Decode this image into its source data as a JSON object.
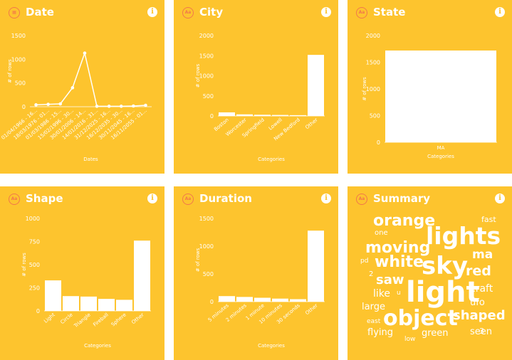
{
  "colors": {
    "panel": "#FDC42E",
    "mark": "#FFFFFF",
    "icon_accent": "#F2784B"
  },
  "cards": [
    {
      "title": "Date",
      "type_icon": "calendar-icon",
      "info": "i"
    },
    {
      "title": "City",
      "type_icon": "Aa",
      "info": "i"
    },
    {
      "title": "State",
      "type_icon": "Aa",
      "info": "i"
    },
    {
      "title": "Shape",
      "type_icon": "Aa",
      "info": "i"
    },
    {
      "title": "Duration",
      "type_icon": "Aa",
      "info": "i"
    },
    {
      "title": "Summary",
      "type_icon": "Aa",
      "info": "i"
    }
  ],
  "chart_data": [
    {
      "type": "line",
      "title": "Date",
      "xlabel": "Dates",
      "ylabel": "# of rows",
      "ylim": [
        0,
        1500
      ],
      "yticks": [
        0,
        500,
        1000,
        1500
      ],
      "categories": [
        "01/04/1966 - 16...",
        "18/03/1976 - 01...",
        "01/03/1986 - 15...",
        "15/02/1996 - 30...",
        "30/01/2006 - 14...",
        "14/01/2016 - 31...",
        "31/12/2025 - 16...",
        "16/12/2035 - 30...",
        "30/11/2045 - 16...",
        "16/11/2055 - 01..."
      ],
      "values": [
        40,
        50,
        60,
        400,
        1130,
        10,
        10,
        10,
        15,
        30
      ]
    },
    {
      "type": "bar",
      "title": "City",
      "xlabel": "Categories",
      "ylabel": "# of rows",
      "ylim": [
        0,
        2000
      ],
      "yticks": [
        0,
        500,
        1000,
        1500,
        2000
      ],
      "categories": [
        "Boston",
        "Worcester",
        "Springfield",
        "Lowell",
        "New Bedford",
        "Other"
      ],
      "values": [
        90,
        40,
        30,
        25,
        20,
        1520
      ]
    },
    {
      "type": "bar",
      "title": "State",
      "xlabel": "Categories",
      "ylabel": "# of rows",
      "ylim": [
        0,
        2000
      ],
      "yticks": [
        0,
        500,
        1000,
        1500,
        2000
      ],
      "categories": [
        "MA"
      ],
      "values": [
        1720
      ]
    },
    {
      "type": "bar",
      "title": "Shape",
      "xlabel": "Categories",
      "ylabel": "# of rows",
      "ylim": [
        0,
        1000
      ],
      "yticks": [
        0,
        250,
        500,
        750,
        1000
      ],
      "categories": [
        "Light",
        "Circle",
        "Triangle",
        "Fireball",
        "Sphere",
        "Other"
      ],
      "values": [
        330,
        160,
        155,
        130,
        120,
        760
      ]
    },
    {
      "type": "bar",
      "title": "Duration",
      "xlabel": "Categories",
      "ylabel": "# of rows",
      "ylim": [
        0,
        1500
      ],
      "yticks": [
        0,
        500,
        1000,
        1500
      ],
      "categories": [
        "5 minutes",
        "2 minutes",
        "1 minute",
        "10 minutes",
        "30 seconds",
        "Other"
      ],
      "values": [
        100,
        85,
        70,
        55,
        45,
        1280
      ]
    }
  ],
  "summary_words": [
    {
      "text": "orange",
      "size": 22
    },
    {
      "text": "fast",
      "size": 11
    },
    {
      "text": "one",
      "size": 10
    },
    {
      "text": "moving",
      "size": 22
    },
    {
      "text": "lights",
      "size": 33
    },
    {
      "text": "ma",
      "size": 17
    },
    {
      "text": "pd",
      "size": 9
    },
    {
      "text": "white",
      "size": 22
    },
    {
      "text": "sky",
      "size": 34
    },
    {
      "text": "red",
      "size": 19
    },
    {
      "text": "2",
      "size": 10
    },
    {
      "text": "saw",
      "size": 18
    },
    {
      "text": "u",
      "size": 9
    },
    {
      "text": "light",
      "size": 40
    },
    {
      "text": "craft",
      "size": 14
    },
    {
      "text": "like",
      "size": 14
    },
    {
      "text": "ufo",
      "size": 13
    },
    {
      "text": "large",
      "size": 13
    },
    {
      "text": "east",
      "size": 9
    },
    {
      "text": "object",
      "size": 30
    },
    {
      "text": "shaped",
      "size": 18
    },
    {
      "text": "flying",
      "size": 13
    },
    {
      "text": "low",
      "size": 9
    },
    {
      "text": "green",
      "size": 13
    },
    {
      "text": "seen",
      "size": 13
    },
    {
      "text": "3",
      "size": 11
    }
  ]
}
